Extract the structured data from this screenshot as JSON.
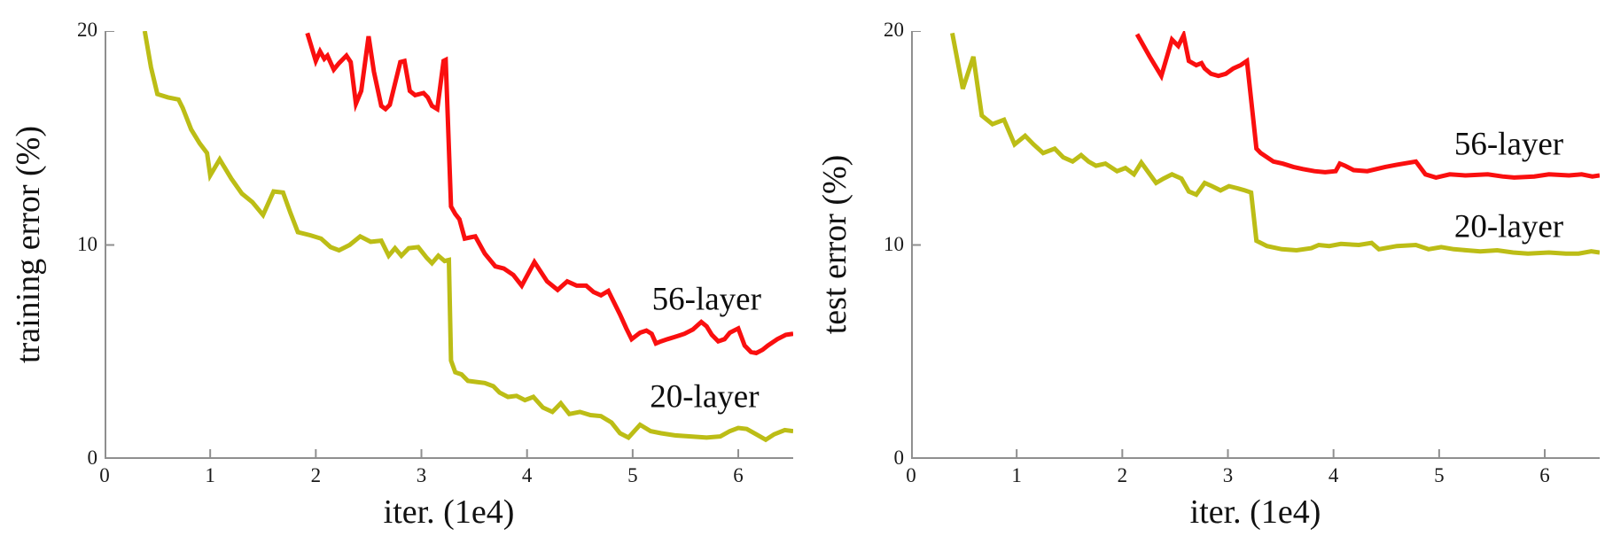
{
  "figure": {
    "background": "#ffffff",
    "axis_color": "#8f8f8f",
    "tick_label_color": "#1a1a1a"
  },
  "chart_data": [
    {
      "type": "line",
      "title": "",
      "xlabel": "iter. (1e4)",
      "ylabel": "training error (%)",
      "xlim": [
        0,
        6.52
      ],
      "ylim": [
        0,
        20
      ],
      "x_ticks": [
        "0",
        "1",
        "2",
        "3",
        "4",
        "5",
        "6"
      ],
      "x_tick_values": [
        0,
        1,
        2,
        3,
        4,
        5,
        6
      ],
      "y_ticks": [
        "0",
        "10",
        "20"
      ],
      "y_tick_values": [
        0,
        10,
        20
      ],
      "grid": false,
      "legend_position": "inline-annotations",
      "series": [
        {
          "name": "56-layer",
          "color": "#fa0f0f",
          "label_anchor": [
            5.7,
            7.45
          ],
          "points": [
            [
              1.92,
              19.9
            ],
            [
              2.0,
              18.6
            ],
            [
              2.04,
              19.05
            ],
            [
              2.08,
              18.7
            ],
            [
              2.11,
              18.85
            ],
            [
              2.17,
              18.2
            ],
            [
              2.22,
              18.5
            ],
            [
              2.29,
              18.85
            ],
            [
              2.33,
              18.55
            ],
            [
              2.38,
              16.6
            ],
            [
              2.43,
              17.2
            ],
            [
              2.5,
              19.75
            ],
            [
              2.55,
              18.1
            ],
            [
              2.62,
              16.5
            ],
            [
              2.66,
              16.35
            ],
            [
              2.7,
              16.55
            ],
            [
              2.8,
              18.55
            ],
            [
              2.84,
              18.6
            ],
            [
              2.89,
              17.2
            ],
            [
              2.94,
              17.0
            ],
            [
              3.02,
              17.1
            ],
            [
              3.06,
              16.9
            ],
            [
              3.1,
              16.5
            ],
            [
              3.15,
              16.35
            ],
            [
              3.21,
              18.6
            ],
            [
              3.23,
              18.65
            ],
            [
              3.28,
              11.8
            ],
            [
              3.32,
              11.45
            ],
            [
              3.36,
              11.2
            ],
            [
              3.41,
              10.3
            ],
            [
              3.46,
              10.35
            ],
            [
              3.51,
              10.4
            ],
            [
              3.6,
              9.6
            ],
            [
              3.7,
              9.0
            ],
            [
              3.78,
              8.9
            ],
            [
              3.87,
              8.6
            ],
            [
              3.95,
              8.1
            ],
            [
              4.07,
              9.2
            ],
            [
              4.19,
              8.3
            ],
            [
              4.29,
              7.9
            ],
            [
              4.38,
              8.3
            ],
            [
              4.47,
              8.1
            ],
            [
              4.56,
              8.1
            ],
            [
              4.63,
              7.8
            ],
            [
              4.7,
              7.65
            ],
            [
              4.77,
              7.85
            ],
            [
              4.88,
              6.75
            ],
            [
              4.94,
              6.1
            ],
            [
              4.99,
              5.6
            ],
            [
              5.07,
              5.9
            ],
            [
              5.13,
              6.0
            ],
            [
              5.18,
              5.85
            ],
            [
              5.22,
              5.4
            ],
            [
              5.27,
              5.5
            ],
            [
              5.33,
              5.6
            ],
            [
              5.4,
              5.7
            ],
            [
              5.49,
              5.85
            ],
            [
              5.57,
              6.05
            ],
            [
              5.65,
              6.4
            ],
            [
              5.7,
              6.2
            ],
            [
              5.75,
              5.8
            ],
            [
              5.81,
              5.5
            ],
            [
              5.87,
              5.6
            ],
            [
              5.92,
              5.9
            ],
            [
              6.0,
              6.1
            ],
            [
              6.06,
              5.3
            ],
            [
              6.12,
              5.0
            ],
            [
              6.17,
              4.95
            ],
            [
              6.23,
              5.1
            ],
            [
              6.28,
              5.3
            ],
            [
              6.37,
              5.6
            ],
            [
              6.45,
              5.8
            ],
            [
              6.52,
              5.85
            ]
          ]
        },
        {
          "name": "20-layer",
          "color": "#bcbd16",
          "label_anchor": [
            5.68,
            2.9
          ],
          "points": [
            [
              0.38,
              20.0
            ],
            [
              0.44,
              18.3
            ],
            [
              0.5,
              17.05
            ],
            [
              0.6,
              16.9
            ],
            [
              0.7,
              16.8
            ],
            [
              0.74,
              16.4
            ],
            [
              0.82,
              15.4
            ],
            [
              0.9,
              14.75
            ],
            [
              0.97,
              14.3
            ],
            [
              1.0,
              13.25
            ],
            [
              1.09,
              14.0
            ],
            [
              1.2,
              13.1
            ],
            [
              1.3,
              12.4
            ],
            [
              1.4,
              12.0
            ],
            [
              1.5,
              11.4
            ],
            [
              1.6,
              12.5
            ],
            [
              1.69,
              12.45
            ],
            [
              1.76,
              11.5
            ],
            [
              1.83,
              10.6
            ],
            [
              1.95,
              10.45
            ],
            [
              2.05,
              10.3
            ],
            [
              2.14,
              9.9
            ],
            [
              2.22,
              9.75
            ],
            [
              2.32,
              10.0
            ],
            [
              2.42,
              10.4
            ],
            [
              2.52,
              10.15
            ],
            [
              2.62,
              10.2
            ],
            [
              2.69,
              9.5
            ],
            [
              2.75,
              9.85
            ],
            [
              2.81,
              9.5
            ],
            [
              2.88,
              9.85
            ],
            [
              2.97,
              9.9
            ],
            [
              3.05,
              9.4
            ],
            [
              3.1,
              9.15
            ],
            [
              3.16,
              9.5
            ],
            [
              3.22,
              9.25
            ],
            [
              3.26,
              9.3
            ],
            [
              3.28,
              4.6
            ],
            [
              3.32,
              4.05
            ],
            [
              3.38,
              3.95
            ],
            [
              3.44,
              3.65
            ],
            [
              3.52,
              3.6
            ],
            [
              3.6,
              3.55
            ],
            [
              3.68,
              3.4
            ],
            [
              3.74,
              3.1
            ],
            [
              3.82,
              2.9
            ],
            [
              3.9,
              2.95
            ],
            [
              3.98,
              2.75
            ],
            [
              4.06,
              2.9
            ],
            [
              4.15,
              2.4
            ],
            [
              4.24,
              2.2
            ],
            [
              4.32,
              2.6
            ],
            [
              4.4,
              2.1
            ],
            [
              4.5,
              2.2
            ],
            [
              4.6,
              2.05
            ],
            [
              4.7,
              2.0
            ],
            [
              4.8,
              1.7
            ],
            [
              4.88,
              1.2
            ],
            [
              4.96,
              1.0
            ],
            [
              5.07,
              1.6
            ],
            [
              5.17,
              1.3
            ],
            [
              5.27,
              1.2
            ],
            [
              5.4,
              1.1
            ],
            [
              5.55,
              1.05
            ],
            [
              5.7,
              1.0
            ],
            [
              5.83,
              1.05
            ],
            [
              5.92,
              1.3
            ],
            [
              6.0,
              1.45
            ],
            [
              6.08,
              1.4
            ],
            [
              6.17,
              1.15
            ],
            [
              6.26,
              0.9
            ],
            [
              6.34,
              1.15
            ],
            [
              6.44,
              1.35
            ],
            [
              6.52,
              1.3
            ]
          ]
        }
      ]
    },
    {
      "type": "line",
      "title": "",
      "xlabel": "iter. (1e4)",
      "ylabel": "test error (%)",
      "xlim": [
        0,
        6.52
      ],
      "ylim": [
        0,
        20
      ],
      "x_ticks": [
        "0",
        "1",
        "2",
        "3",
        "4",
        "5",
        "6"
      ],
      "x_tick_values": [
        0,
        1,
        2,
        3,
        4,
        5,
        6
      ],
      "y_ticks": [
        "0",
        "10",
        "20"
      ],
      "y_tick_values": [
        0,
        10,
        20
      ],
      "grid": false,
      "legend_position": "inline-annotations",
      "series": [
        {
          "name": "56-layer",
          "color": "#fa0f0f",
          "label_anchor": [
            5.66,
            14.7
          ],
          "points": [
            [
              2.14,
              19.85
            ],
            [
              2.26,
              18.8
            ],
            [
              2.37,
              17.9
            ],
            [
              2.47,
              19.6
            ],
            [
              2.53,
              19.3
            ],
            [
              2.58,
              19.8
            ],
            [
              2.63,
              18.6
            ],
            [
              2.7,
              18.4
            ],
            [
              2.75,
              18.5
            ],
            [
              2.78,
              18.25
            ],
            [
              2.84,
              18.0
            ],
            [
              2.91,
              17.9
            ],
            [
              2.98,
              18.0
            ],
            [
              3.05,
              18.25
            ],
            [
              3.12,
              18.4
            ],
            [
              3.18,
              18.6
            ],
            [
              3.27,
              14.5
            ],
            [
              3.31,
              14.3
            ],
            [
              3.43,
              13.9
            ],
            [
              3.52,
              13.8
            ],
            [
              3.62,
              13.65
            ],
            [
              3.71,
              13.55
            ],
            [
              3.82,
              13.45
            ],
            [
              3.92,
              13.4
            ],
            [
              4.02,
              13.45
            ],
            [
              4.06,
              13.8
            ],
            [
              4.11,
              13.7
            ],
            [
              4.19,
              13.5
            ],
            [
              4.32,
              13.45
            ],
            [
              4.49,
              13.65
            ],
            [
              4.6,
              13.75
            ],
            [
              4.78,
              13.9
            ],
            [
              4.87,
              13.3
            ],
            [
              4.97,
              13.15
            ],
            [
              5.1,
              13.3
            ],
            [
              5.25,
              13.25
            ],
            [
              5.46,
              13.3
            ],
            [
              5.6,
              13.2
            ],
            [
              5.71,
              13.15
            ],
            [
              5.9,
              13.2
            ],
            [
              6.04,
              13.3
            ],
            [
              6.23,
              13.25
            ],
            [
              6.35,
              13.3
            ],
            [
              6.45,
              13.2
            ],
            [
              6.52,
              13.25
            ]
          ]
        },
        {
          "name": "20-layer",
          "color": "#bcbd16",
          "label_anchor": [
            5.66,
            10.85
          ],
          "points": [
            [
              0.39,
              19.9
            ],
            [
              0.49,
              17.3
            ],
            [
              0.59,
              18.8
            ],
            [
              0.67,
              16.05
            ],
            [
              0.77,
              15.65
            ],
            [
              0.88,
              15.85
            ],
            [
              0.98,
              14.7
            ],
            [
              1.08,
              15.1
            ],
            [
              1.16,
              14.7
            ],
            [
              1.25,
              14.3
            ],
            [
              1.36,
              14.5
            ],
            [
              1.44,
              14.1
            ],
            [
              1.53,
              13.9
            ],
            [
              1.61,
              14.2
            ],
            [
              1.68,
              13.9
            ],
            [
              1.75,
              13.7
            ],
            [
              1.84,
              13.8
            ],
            [
              1.95,
              13.45
            ],
            [
              2.03,
              13.6
            ],
            [
              2.11,
              13.3
            ],
            [
              2.18,
              13.85
            ],
            [
              2.32,
              12.9
            ],
            [
              2.39,
              13.1
            ],
            [
              2.47,
              13.3
            ],
            [
              2.56,
              13.1
            ],
            [
              2.63,
              12.5
            ],
            [
              2.7,
              12.35
            ],
            [
              2.78,
              12.9
            ],
            [
              2.85,
              12.75
            ],
            [
              2.93,
              12.55
            ],
            [
              3.01,
              12.75
            ],
            [
              3.09,
              12.65
            ],
            [
              3.16,
              12.55
            ],
            [
              3.22,
              12.45
            ],
            [
              3.27,
              10.2
            ],
            [
              3.37,
              9.95
            ],
            [
              3.51,
              9.8
            ],
            [
              3.65,
              9.75
            ],
            [
              3.79,
              9.85
            ],
            [
              3.86,
              10.0
            ],
            [
              3.96,
              9.95
            ],
            [
              4.07,
              10.05
            ],
            [
              4.24,
              10.0
            ],
            [
              4.36,
              10.1
            ],
            [
              4.43,
              9.8
            ],
            [
              4.6,
              9.95
            ],
            [
              4.78,
              10.0
            ],
            [
              4.9,
              9.8
            ],
            [
              5.02,
              9.9
            ],
            [
              5.14,
              9.8
            ],
            [
              5.26,
              9.75
            ],
            [
              5.39,
              9.7
            ],
            [
              5.55,
              9.75
            ],
            [
              5.7,
              9.65
            ],
            [
              5.84,
              9.6
            ],
            [
              6.04,
              9.65
            ],
            [
              6.2,
              9.6
            ],
            [
              6.32,
              9.6
            ],
            [
              6.44,
              9.7
            ],
            [
              6.52,
              9.65
            ]
          ]
        }
      ]
    }
  ]
}
